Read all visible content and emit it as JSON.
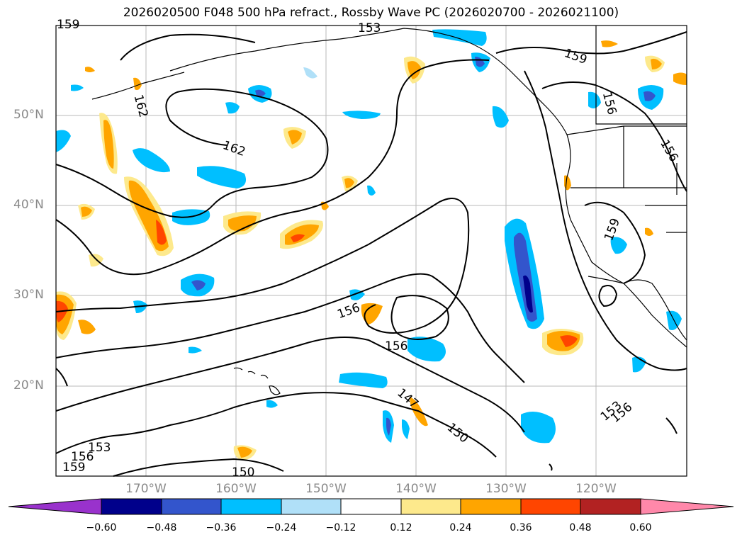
{
  "title": "2026020500 F048 500 hPa refract., Rossby Wave PC (2026020700 - 2026021100)",
  "lat_labels": [
    "50°N",
    "40°N",
    "30°N",
    "20°N"
  ],
  "lon_labels": [
    "170°W",
    "160°W",
    "150°W",
    "140°W",
    "130°W",
    "120°W"
  ],
  "contour_labels": [
    "162",
    "162",
    "159",
    "159",
    "156",
    "156",
    "156",
    "156",
    "153",
    "150",
    "147",
    "150",
    "153",
    "156",
    "159",
    "153",
    "156",
    "159"
  ],
  "colorbar": {
    "ticks": [
      "−0.60",
      "−0.48",
      "−0.36",
      "−0.24",
      "−0.12",
      "0.12",
      "0.24",
      "0.36",
      "0.48",
      "0.60"
    ],
    "colors": [
      "#9932cc",
      "#00008b",
      "#3355cc",
      "#00bfff",
      "#b0e0f8",
      "#ffffff",
      "#fde98c",
      "#ffa500",
      "#ff4500",
      "#b22222",
      "#ff88aa"
    ]
  },
  "map": {
    "lon_range": [
      -180,
      -110
    ],
    "lat_range": [
      10,
      60
    ],
    "projection": "PlateCarree",
    "grid": true
  }
}
